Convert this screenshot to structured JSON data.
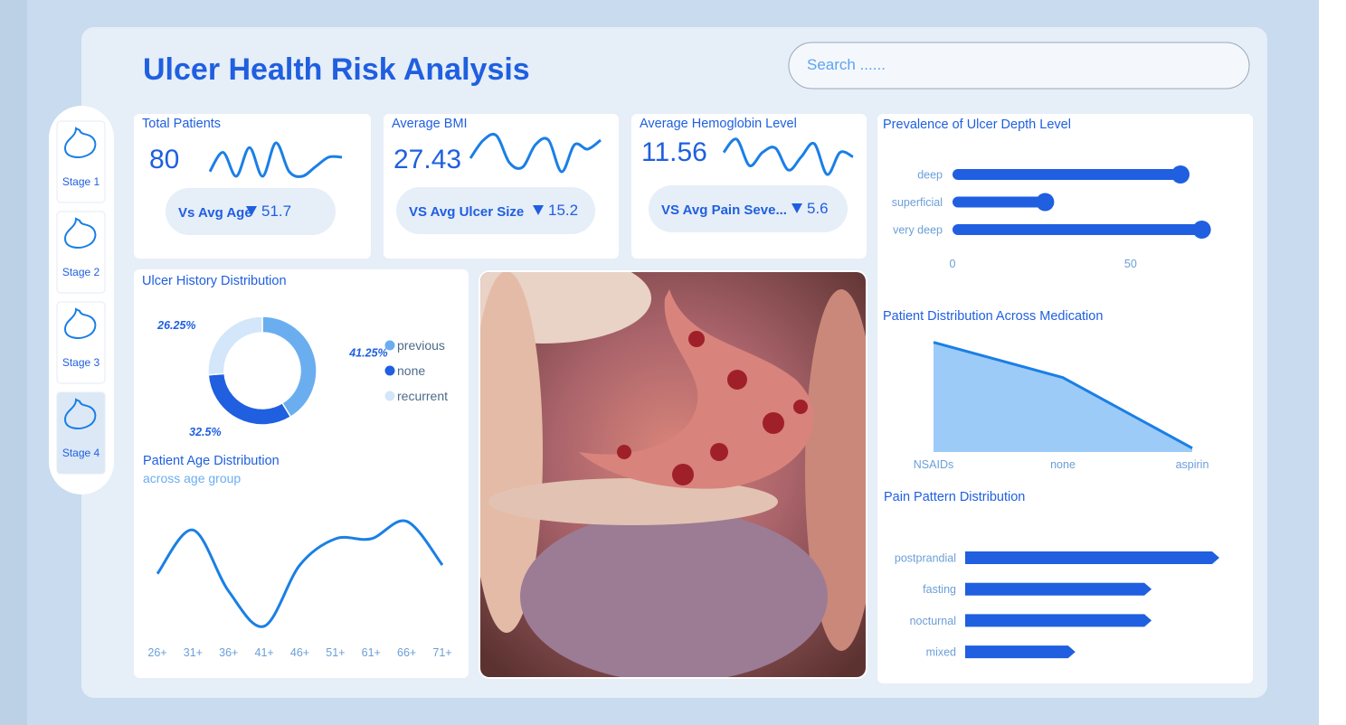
{
  "header": {
    "title": "Ulcer Health Risk Analysis",
    "search_placeholder": "Search ......"
  },
  "sidebar": {
    "items": [
      "Stage 1",
      "Stage 2",
      "Stage 3",
      "Stage 4"
    ]
  },
  "kpis": [
    {
      "title": "Total Patients",
      "value": 80,
      "compare_label": "Vs Avg Age",
      "compare_value": 51.7,
      "trend": [
        3,
        7,
        2,
        8,
        2,
        9,
        3,
        2,
        4,
        6,
        6
      ]
    },
    {
      "title": "Average BMI",
      "value": 27.43,
      "compare_label": "VS Avg Ulcer Size",
      "compare_value": 15.2,
      "trend": [
        4,
        8,
        9,
        3,
        2,
        7,
        8,
        1,
        7,
        6,
        8
      ]
    },
    {
      "title": "Average Hemoglobin Level",
      "value": 11.56,
      "compare_label": "VS Avg Pain Seve...",
      "compare_value": 5.6,
      "trend": [
        6,
        9,
        3,
        6,
        7,
        2,
        5,
        8,
        1,
        6,
        5
      ]
    }
  ],
  "chart_data": [
    {
      "type": "donut",
      "title": "Ulcer History Distribution",
      "categories": [
        "previous",
        "none",
        "recurrent"
      ],
      "values": [
        41.25,
        32.5,
        26.25
      ],
      "value_labels": [
        "41.25%",
        "32.5%",
        "26.25%"
      ],
      "colors": [
        "#6aaef0",
        "#1f5fe0",
        "#d3e6fa"
      ]
    },
    {
      "type": "line",
      "title": "Patient Age Distribution",
      "subtitle": "across age group",
      "categories": [
        "26+",
        "31+",
        "36+",
        "41+",
        "46+",
        "51+",
        "61+",
        "66+",
        "71+"
      ],
      "values": [
        8,
        13,
        6,
        2,
        9,
        12,
        12,
        14,
        9
      ],
      "ylim": [
        0,
        15
      ],
      "color": "#1a7fe6"
    },
    {
      "type": "hbar",
      "title": "Prevalence of Ulcer Depth Level",
      "categories": [
        "deep",
        "superficial",
        "very deep"
      ],
      "values": [
        64,
        26,
        70
      ],
      "xlim": [
        0,
        80
      ],
      "xticks": [
        0,
        50
      ],
      "color": "#1f5fe0"
    },
    {
      "type": "area",
      "title": "Patient Distribution Across Medication",
      "categories": [
        "NSAIDs",
        "none",
        "aspirin"
      ],
      "values": [
        38,
        29,
        11
      ],
      "ylim": [
        10,
        40
      ],
      "color": "#1a7fe6",
      "fill": "#9dcbf7"
    },
    {
      "type": "arrowbar",
      "title": "Pain Pattern Distribution",
      "categories": [
        "postprandial",
        "fasting",
        "nocturnal",
        "mixed"
      ],
      "values": [
        30,
        22,
        22,
        13
      ],
      "xlim": [
        0,
        30
      ],
      "color": "#1f5fe0"
    }
  ]
}
